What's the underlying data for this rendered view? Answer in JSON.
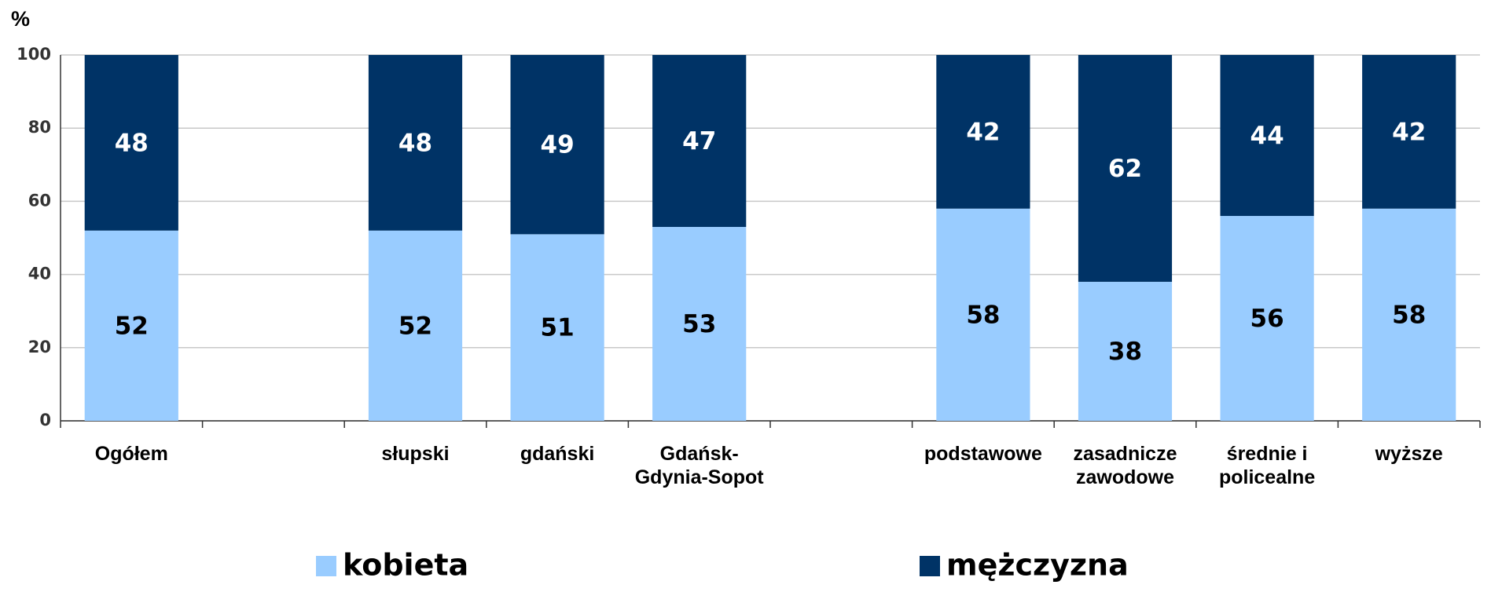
{
  "chart_data": {
    "type": "stacked_bar",
    "y_axis_label": "%",
    "categories": [
      "Ogółem",
      null,
      "słupski",
      "gdański",
      "Gdańsk-Gdynia-Sopot",
      null,
      "podstawowe",
      "zasadnicze zawodowe",
      "średnie i policealne",
      "wyższe"
    ],
    "series": [
      {
        "name": "kobieta",
        "color": "#99ccff",
        "values": [
          52,
          null,
          52,
          51,
          53,
          null,
          58,
          38,
          56,
          58
        ]
      },
      {
        "name": "mężczyzna",
        "color": "#003366",
        "values": [
          48,
          null,
          48,
          49,
          47,
          null,
          42,
          62,
          44,
          42
        ]
      }
    ],
    "ylim": [
      0,
      100
    ],
    "yticks": [
      0,
      20,
      40,
      60,
      80,
      100
    ],
    "grid": true,
    "legend": "bottom"
  }
}
